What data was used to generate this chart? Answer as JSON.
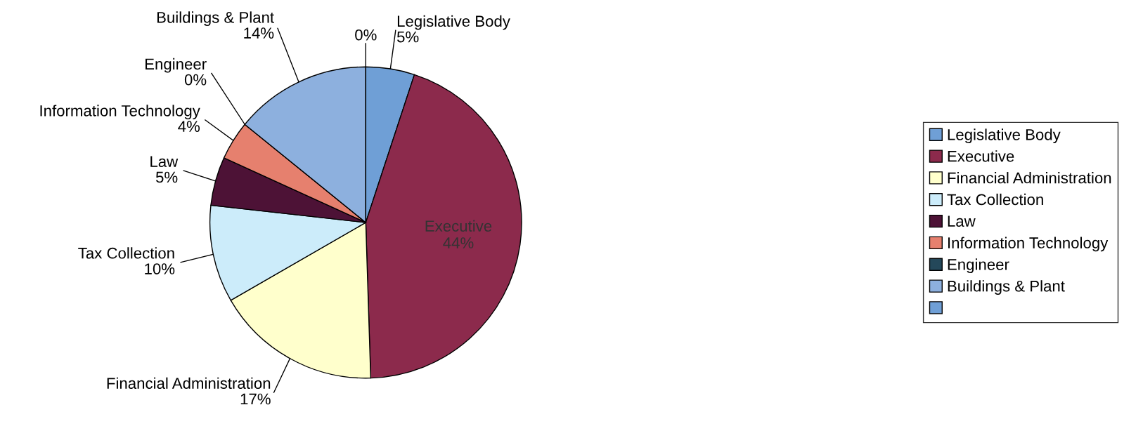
{
  "chart_data": {
    "type": "pie",
    "categories": [
      "Legislative Body",
      "Executive",
      "Financial Administration",
      "Tax Collection",
      "Law",
      "Information Technology",
      "Engineer",
      "Buildings & Plant",
      null
    ],
    "values": [
      5,
      44,
      17,
      10,
      5,
      4,
      0,
      14,
      0
    ],
    "colors": [
      "#6f9fd6",
      "#8c2a4c",
      "#ffffcc",
      "#ccecfa",
      "#4d1236",
      "#e6806e",
      "#24485a",
      "#8db0de",
      "#6f9fd6"
    ],
    "value_labels": [
      "5%",
      "44%",
      "17%",
      "10%",
      "5%",
      "4%",
      "0%",
      "14%",
      "0%"
    ],
    "legend": "right"
  }
}
